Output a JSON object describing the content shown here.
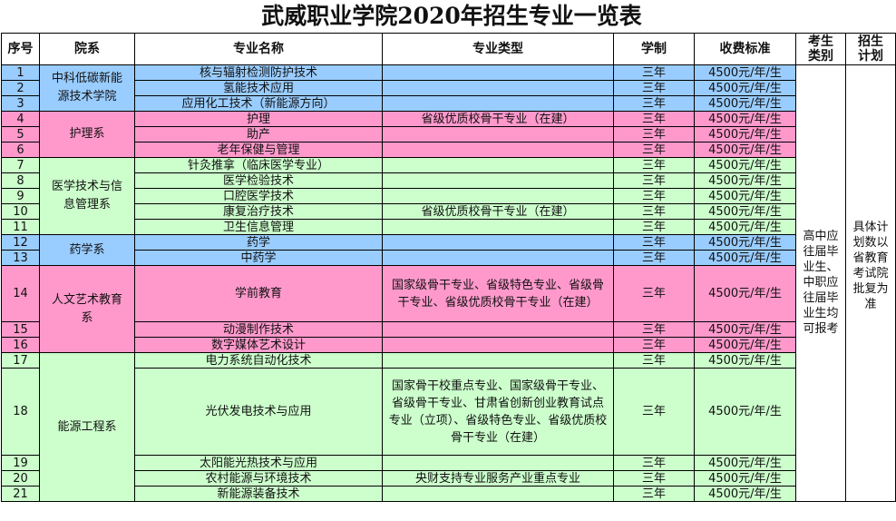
{
  "title": "武威职业学院2020年招生专业一览表",
  "headers": [
    "序号",
    "院系",
    "专业名称",
    "专业类型",
    "学制",
    "收费标准",
    "考生类别",
    "招生计划"
  ],
  "colors": {
    "blue": "#99ccff",
    "pink": "#ff99cc",
    "green": "#ccffcc"
  },
  "student_type": "高中应往届毕业生、中职应往届毕业生均可报考",
  "plan": "具体计划数以省教育考试院批复为准",
  "departments": [
    {
      "name": "中科低碳新能源技术学院",
      "color": "blue",
      "majors": [
        {
          "no": "1",
          "name": "核与辐射检测防护技术",
          "type": "",
          "years": "三年",
          "fee": "4500元/年/生"
        },
        {
          "no": "2",
          "name": "氢能技术应用",
          "type": "",
          "years": "三年",
          "fee": "4500元/年/生"
        },
        {
          "no": "3",
          "name": "应用化工技术（新能源方向）",
          "type": "",
          "years": "三年",
          "fee": "4500元/年/生"
        }
      ]
    },
    {
      "name": "护理系",
      "color": "pink",
      "majors": [
        {
          "no": "4",
          "name": "护理",
          "type": "省级优质校骨干专业（在建）",
          "years": "三年",
          "fee": "4500元/年/生"
        },
        {
          "no": "5",
          "name": "助产",
          "type": "",
          "years": "三年",
          "fee": "4500元/年/生"
        },
        {
          "no": "6",
          "name": "老年保健与管理",
          "type": "",
          "years": "三年",
          "fee": "4500元/年/生"
        }
      ]
    },
    {
      "name": "医学技术与信息管理系",
      "color": "green",
      "majors": [
        {
          "no": "7",
          "name": "针灸推拿（临床医学专业）",
          "type": "",
          "years": "三年",
          "fee": "4500元/年/生"
        },
        {
          "no": "8",
          "name": "医学检验技术",
          "type": "",
          "years": "三年",
          "fee": "4500元/年/生"
        },
        {
          "no": "9",
          "name": "口腔医学技术",
          "type": "",
          "years": "三年",
          "fee": "4500元/年/生"
        },
        {
          "no": "10",
          "name": "康复治疗技术",
          "type": "省级优质校骨干专业（在建）",
          "years": "三年",
          "fee": "4500元/年/生"
        },
        {
          "no": "11",
          "name": "卫生信息管理",
          "type": "",
          "years": "三年",
          "fee": "4500元/年/生"
        }
      ]
    },
    {
      "name": "药学系",
      "color": "blue",
      "majors": [
        {
          "no": "12",
          "name": "药学",
          "type": "",
          "years": "三年",
          "fee": "4500元/年/生"
        },
        {
          "no": "13",
          "name": "中药学",
          "type": "",
          "years": "三年",
          "fee": "4500元/年/生"
        }
      ]
    },
    {
      "name": "人文艺术教育系",
      "color": "pink",
      "majors": [
        {
          "no": "14",
          "name": "学前教育",
          "type": "国家级骨干专业、省级特色专业、省级骨干专业、省级优质校骨干专业（在建）",
          "years": "三年",
          "fee": "4500元/年/生",
          "tall": 1
        },
        {
          "no": "15",
          "name": "动漫制作技术",
          "type": "",
          "years": "三年",
          "fee": "4500元/年/生"
        },
        {
          "no": "16",
          "name": "数字媒体艺术设计",
          "type": "",
          "years": "三年",
          "fee": "4500元/年/生"
        }
      ]
    },
    {
      "name": "能源工程系",
      "color": "green",
      "majors": [
        {
          "no": "17",
          "name": "电力系统自动化技术",
          "type": "",
          "years": "三年",
          "fee": "4500元/年/生"
        },
        {
          "no": "18",
          "name": "光伏发电技术与应用",
          "type": "国家骨干校重点专业、国家级骨干专业、省级骨干专业、甘肃省创新创业教育试点专业（立项）、省级特色专业、省级优质校骨干专业（在建）",
          "years": "三年",
          "fee": "4500元/年/生",
          "tall": 2
        },
        {
          "no": "19",
          "name": "太阳能光热技术与应用",
          "type": "",
          "years": "三年",
          "fee": "4500元/年/生"
        },
        {
          "no": "20",
          "name": "农村能源与环境技术",
          "type": "央财支持专业服务产业重点专业",
          "years": "三年",
          "fee": "4500元/年/生"
        },
        {
          "no": "21",
          "name": "新能源装备技术",
          "type": "",
          "years": "三年",
          "fee": "4500元/年/生"
        }
      ]
    }
  ]
}
